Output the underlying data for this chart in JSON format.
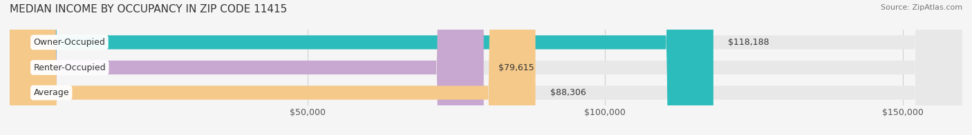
{
  "title": "MEDIAN INCOME BY OCCUPANCY IN ZIP CODE 11415",
  "source": "Source: ZipAtlas.com",
  "categories": [
    "Owner-Occupied",
    "Renter-Occupied",
    "Average"
  ],
  "values": [
    118188,
    79615,
    88306
  ],
  "value_labels": [
    "$118,188",
    "$79,615",
    "$88,306"
  ],
  "bar_colors": [
    "#2bbcbb",
    "#c8a8d0",
    "#f5c98a"
  ],
  "bar_bg_color": "#e8e8e8",
  "background_color": "#f5f5f5",
  "xlim": [
    0,
    160000
  ],
  "xticks": [
    0,
    50000,
    100000,
    150000
  ],
  "xticklabels": [
    "",
    "$50,000",
    "$100,000",
    "$150,000"
  ],
  "title_fontsize": 11,
  "source_fontsize": 8,
  "label_fontsize": 9,
  "value_fontsize": 9,
  "tick_fontsize": 9,
  "bar_height": 0.55,
  "grid_color": "#d0d0d0"
}
